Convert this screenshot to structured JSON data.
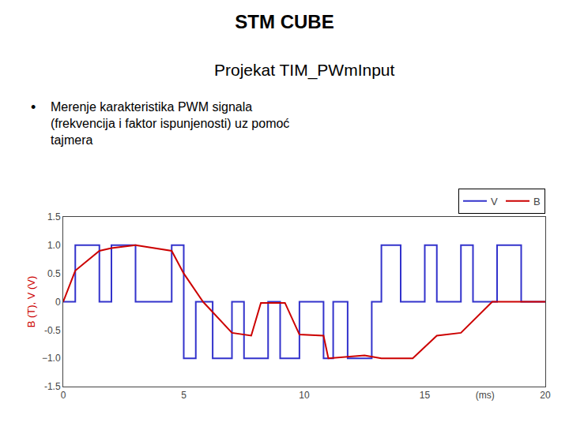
{
  "chart_data": {
    "type": "line",
    "title": "STM CUBE",
    "subtitle": "Projekat TIM_PWmInput",
    "annotations": [
      "•",
      "Merenje karakteristika PWM signala\n(frekvencija i faktor ispunjenosti) uz pomoć\ntajmera"
    ],
    "ylabel": "B (T), V (V)",
    "xlim": [
      0,
      20
    ],
    "ylim": [
      -1.5,
      1.5
    ],
    "xticks": [
      0,
      5,
      10,
      15,
      {
        "value": 17.5,
        "label": "(ms)"
      },
      20
    ],
    "yticks": [
      -1.5,
      {
        "value": -1.0,
        "label": "−1.0"
      },
      -0.5,
      0,
      0.5,
      {
        "value": 1.0,
        "label": "1.0"
      },
      1.5
    ],
    "grid": false,
    "legend": "upper right",
    "series": [
      {
        "name": "V",
        "color": "#3333cc",
        "x": [
          0,
          0.5,
          0.5,
          1.5,
          1.5,
          2.0,
          2.0,
          3.0,
          3.0,
          4.5,
          4.5,
          5.0,
          5.0,
          5.5,
          5.5,
          6.2,
          6.2,
          7.0,
          7.0,
          7.5,
          7.5,
          8.5,
          8.5,
          9.0,
          9.0,
          9.8,
          9.8,
          10.8,
          10.8,
          11.2,
          11.2,
          11.8,
          11.8,
          12.8,
          12.8,
          13.2,
          13.2,
          14.0,
          14.0,
          15.0,
          15.0,
          15.5,
          15.5,
          16.5,
          16.5,
          17.0,
          17.0,
          18.0,
          18.0,
          19.0,
          19.0,
          20.0
        ],
        "values": [
          0,
          0,
          1,
          1,
          0,
          0,
          1,
          1,
          0,
          0,
          1,
          1,
          -1,
          -1,
          0,
          0,
          -1,
          -1,
          0,
          0,
          -1,
          -1,
          0,
          0,
          -1,
          -1,
          0,
          0,
          -1,
          -1,
          0,
          0,
          -1,
          -1,
          0,
          0,
          1,
          1,
          0,
          0,
          1,
          1,
          0,
          0,
          1,
          1,
          0,
          0,
          1,
          1,
          0,
          0
        ]
      },
      {
        "name": "B",
        "color": "#cc0000",
        "x": [
          0.0,
          0.5,
          1.5,
          2.0,
          3.0,
          4.5,
          5.0,
          5.8,
          7.0,
          7.8,
          8.2,
          9.2,
          9.8,
          10.8,
          11.0,
          12.5,
          13.2,
          14.5,
          15.5,
          16.5,
          17.8,
          20.0
        ],
        "values": [
          0.0,
          0.55,
          0.9,
          0.95,
          1.0,
          0.9,
          0.5,
          0.0,
          -0.55,
          -0.6,
          -0.02,
          -0.02,
          -0.58,
          -0.6,
          -1.0,
          -0.95,
          -1.0,
          -1.0,
          -0.6,
          -0.55,
          0.0,
          0.0
        ]
      }
    ]
  }
}
